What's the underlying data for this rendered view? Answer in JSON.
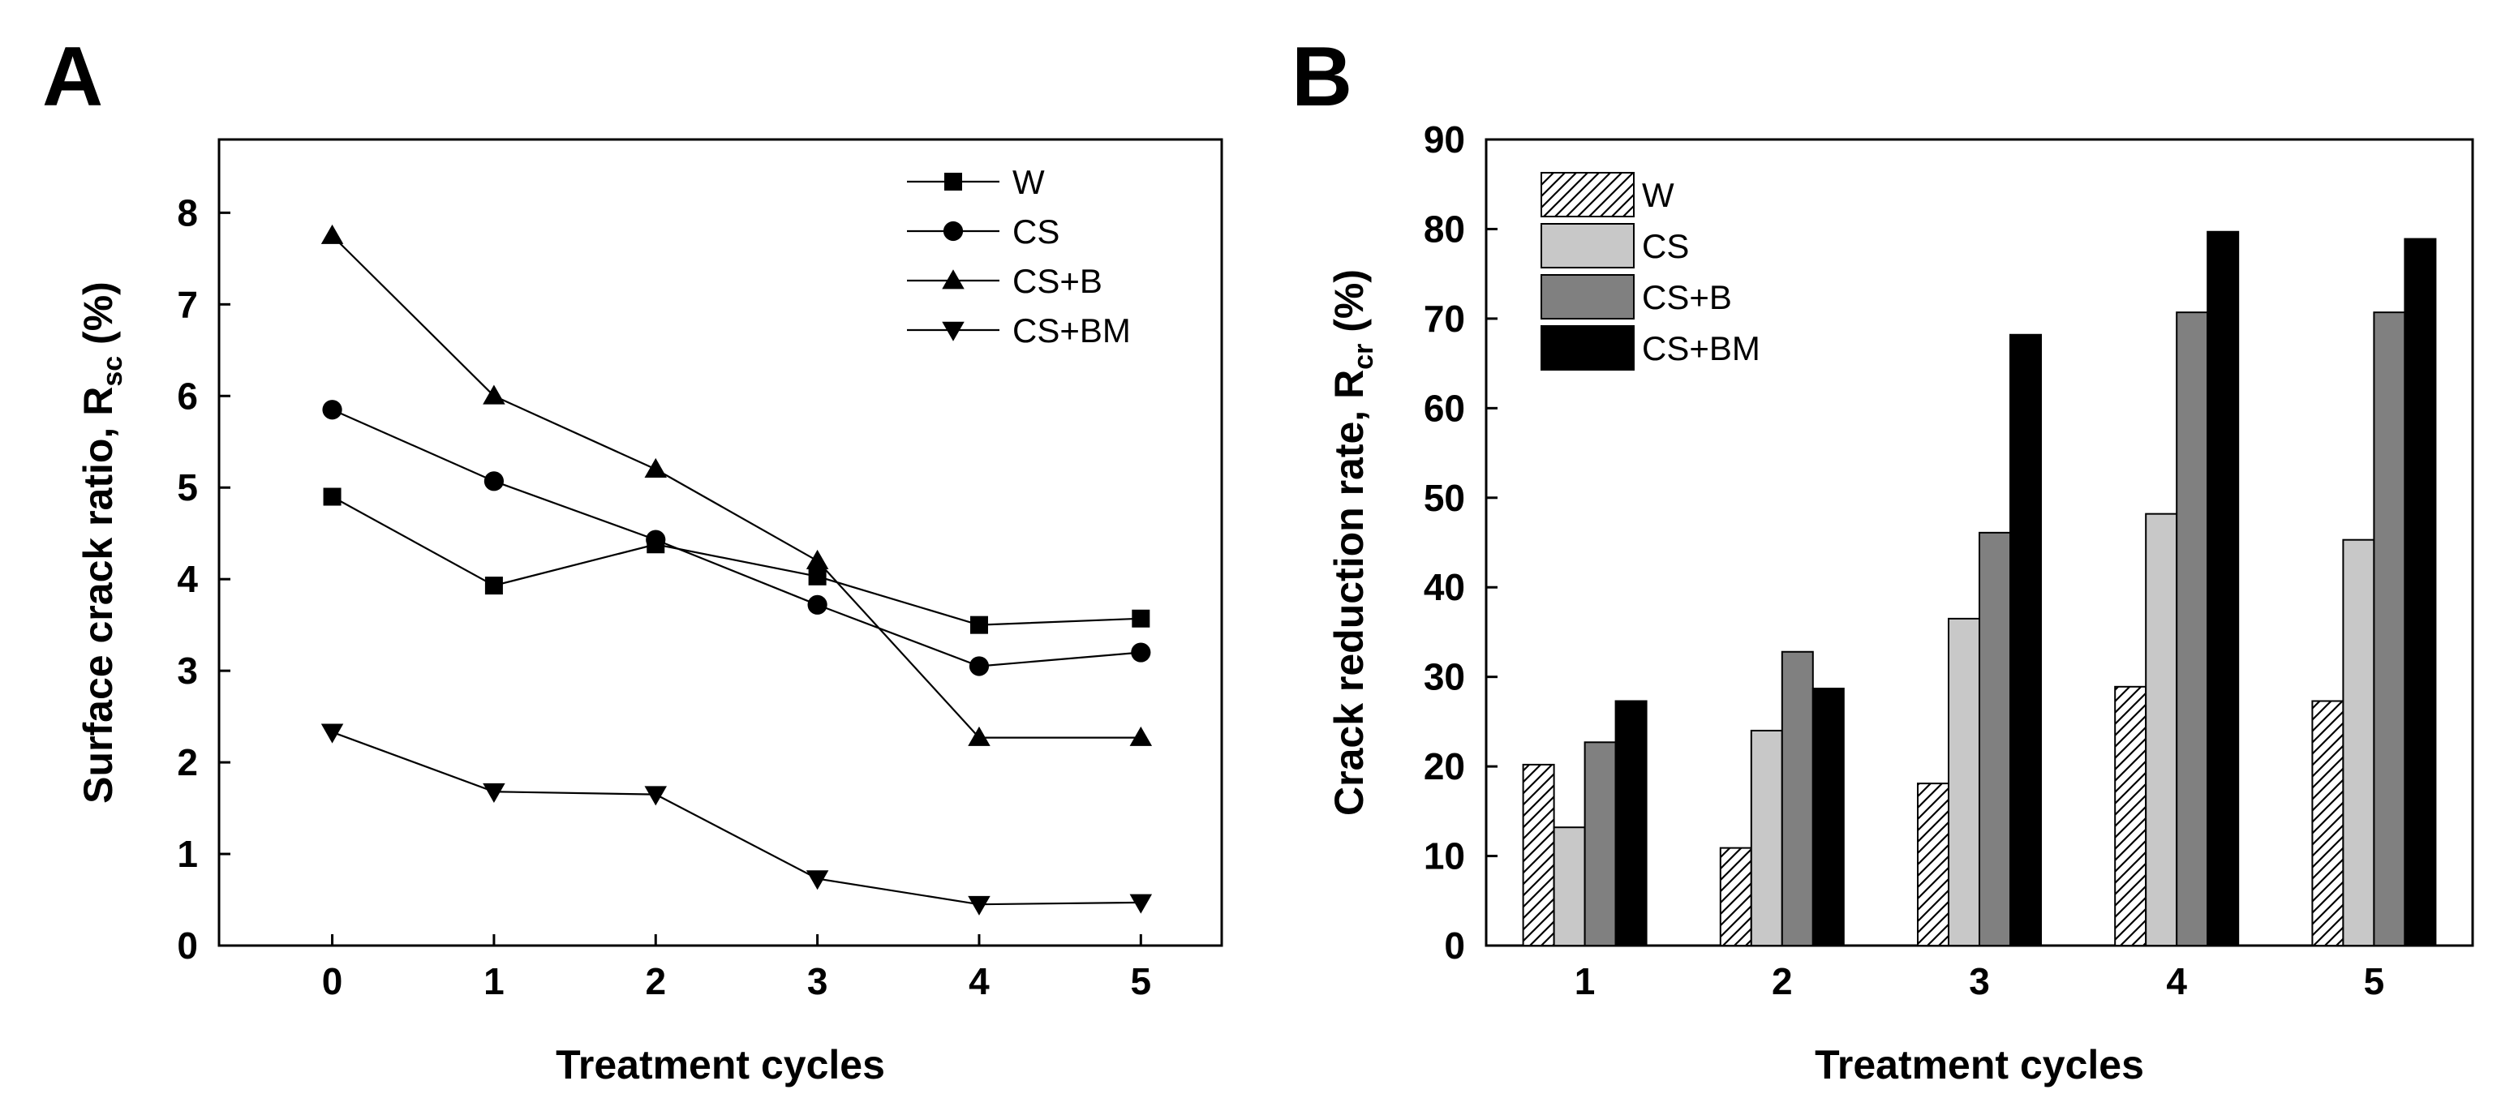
{
  "chart_data": [
    {
      "panel": "A",
      "type": "line",
      "xlabel": "Treatment cycles",
      "ylabel": {
        "main": "Surface crack ratio, R",
        "sub": "sc",
        "suffix": " (%)"
      },
      "x": [
        0,
        1,
        2,
        3,
        4,
        5
      ],
      "xlim": [
        -0.7,
        5.5
      ],
      "ylim": [
        0,
        8.8
      ],
      "xticks": [
        "0",
        "1",
        "2",
        "3",
        "4",
        "5"
      ],
      "yticks": [
        "0",
        "1",
        "2",
        "3",
        "4",
        "5",
        "6",
        "7",
        "8"
      ],
      "legend_position": "top-right",
      "series": [
        {
          "name": "W",
          "marker": "square",
          "values": [
            4.9,
            3.93,
            4.38,
            4.03,
            3.5,
            3.57
          ]
        },
        {
          "name": "CS",
          "marker": "circle",
          "values": [
            5.85,
            5.07,
            4.43,
            3.72,
            3.05,
            3.2
          ]
        },
        {
          "name": "CS+B",
          "marker": "triangle-up",
          "values": [
            7.75,
            6.0,
            5.2,
            4.2,
            2.27,
            2.27
          ]
        },
        {
          "name": "CS+BM",
          "marker": "triangle-down",
          "values": [
            2.33,
            1.68,
            1.65,
            0.73,
            0.45,
            0.47
          ]
        }
      ]
    },
    {
      "panel": "B",
      "type": "bar",
      "xlabel": "Treatment cycles",
      "ylabel": {
        "main": "Crack reduction rate, R",
        "sub": "cr",
        "suffix": " (%)"
      },
      "categories": [
        "1",
        "2",
        "3",
        "4",
        "5"
      ],
      "ylim": [
        0,
        90
      ],
      "yticks": [
        "0",
        "10",
        "20",
        "30",
        "40",
        "50",
        "60",
        "70",
        "80",
        "90"
      ],
      "legend_position": "top-left",
      "series": [
        {
          "name": "W",
          "fill": "hatch",
          "values": [
            20.2,
            10.9,
            18.1,
            28.9,
            27.3
          ]
        },
        {
          "name": "CS",
          "fill": "#c8c8c8",
          "values": [
            13.2,
            24.0,
            36.5,
            48.2,
            45.3
          ]
        },
        {
          "name": "CS+B",
          "fill": "#808080",
          "values": [
            22.7,
            32.8,
            46.1,
            70.7,
            70.7
          ]
        },
        {
          "name": "CS+BM",
          "fill": "#000000",
          "values": [
            27.3,
            28.7,
            68.2,
            79.7,
            78.9
          ]
        }
      ]
    }
  ]
}
